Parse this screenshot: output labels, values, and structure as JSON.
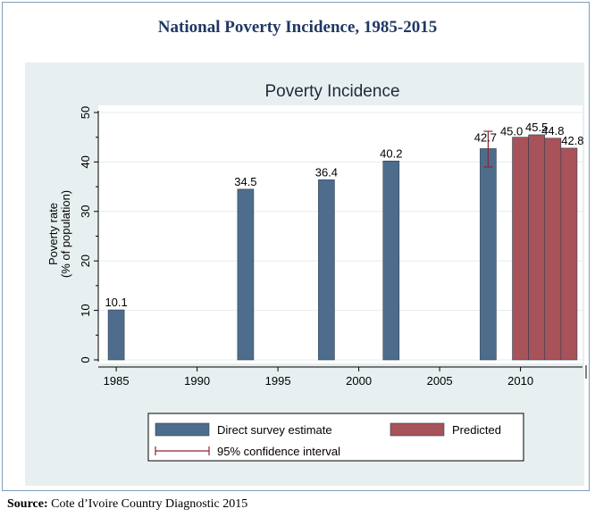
{
  "header": {
    "title": "National Poverty Incidence, 1985-2015"
  },
  "source": {
    "label": "Source:",
    "text": "Cote d’Ivoire Country Diagnostic 2015"
  },
  "chart_data": {
    "type": "bar",
    "title": "Poverty Incidence",
    "ylabel": [
      "Poverty rate",
      "(% of population)"
    ],
    "xlim": [
      1984,
      2014
    ],
    "ylim": [
      0,
      50
    ],
    "xticks": [
      1985,
      1990,
      1995,
      2000,
      2005,
      2010
    ],
    "yticks": [
      0,
      10,
      20,
      30,
      40,
      50
    ],
    "grid": true,
    "legend_position": "bottom",
    "colors": {
      "direct": "#4e6d8d",
      "predicted": "#a8525a",
      "ci": "#8b2635"
    },
    "series": [
      {
        "name": "Direct survey estimate",
        "points": [
          {
            "x": 1985,
            "y": 10.1,
            "label": "10.1"
          },
          {
            "x": 1993,
            "y": 34.5,
            "label": "34.5"
          },
          {
            "x": 1998,
            "y": 36.4,
            "label": "36.4"
          },
          {
            "x": 2002,
            "y": 40.2,
            "label": "40.2"
          },
          {
            "x": 2008,
            "y": 42.7,
            "label": "42.7"
          }
        ]
      },
      {
        "name": "Predicted",
        "points": [
          {
            "x": 2010,
            "y": 45.0,
            "label": "45.0"
          },
          {
            "x": 2011,
            "y": 45.5,
            "label": "45.5"
          },
          {
            "x": 2012,
            "y": 44.8,
            "label": "44.8"
          },
          {
            "x": 2013,
            "y": 42.8,
            "label": "42.8"
          }
        ]
      }
    ],
    "confidence_interval": {
      "name": "95% confidence interval",
      "x": 2008,
      "low": 39.0,
      "high": 46.2
    },
    "legend": [
      {
        "key": "direct",
        "label": "Direct survey estimate"
      },
      {
        "key": "predicted",
        "label": "Predicted"
      },
      {
        "key": "ci",
        "label": "95% confidence interval"
      }
    ]
  }
}
